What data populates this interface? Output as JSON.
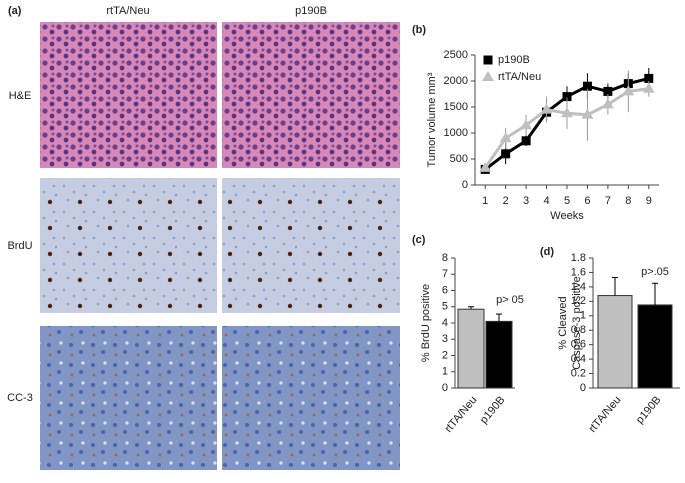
{
  "panels": {
    "a": {
      "label": "(a)",
      "columns": [
        "rtTA/Neu",
        "p190B"
      ],
      "rows": [
        "H&E",
        "BrdU",
        "CC-3"
      ]
    }
  },
  "chart_data": [
    {
      "type": "line",
      "label": "(b)",
      "ylabel": "Tumor volume mm³",
      "xlabel": "Weeks",
      "x": [
        1,
        2,
        3,
        4,
        5,
        6,
        7,
        8,
        9
      ],
      "xlim": [
        0.5,
        9.5
      ],
      "xticks": [
        1,
        2,
        3,
        4,
        5,
        6,
        7,
        8,
        9
      ],
      "ylim": [
        0,
        2500
      ],
      "yticks": [
        0,
        500,
        1000,
        1500,
        2000,
        2500
      ],
      "legend": "top-left",
      "series": [
        {
          "name": "p190B",
          "color": "#000000",
          "marker": "square",
          "values": [
            300,
            600,
            850,
            1400,
            1700,
            1900,
            1800,
            1950,
            2050
          ],
          "errors": [
            50,
            200,
            100,
            150,
            200,
            250,
            150,
            200,
            200
          ]
        },
        {
          "name": "rtTA/Neu",
          "color": "#bfbfbf",
          "marker": "triangle",
          "values": [
            330,
            900,
            1150,
            1450,
            1380,
            1350,
            1550,
            1800,
            1850
          ],
          "errors": [
            50,
            200,
            200,
            250,
            300,
            500,
            200,
            400,
            150
          ]
        }
      ]
    },
    {
      "type": "bar",
      "label": "(c)",
      "ylabel": "% BrdU positive",
      "categories": [
        "rtTA/Neu",
        "p190B"
      ],
      "values": [
        4.85,
        4.1
      ],
      "errors": [
        0.15,
        0.45
      ],
      "colors": [
        "#bfbfbf",
        "#000000"
      ],
      "ylim": [
        0,
        8
      ],
      "yticks": [
        0,
        1,
        2,
        3,
        4,
        5,
        6,
        7,
        8
      ],
      "annotation": "p> 05"
    },
    {
      "type": "bar",
      "label": "(d)",
      "ylabel": [
        "% Cleaved",
        "Caspase-3 positive"
      ],
      "categories": [
        "rtTA/Neu",
        "p190B"
      ],
      "values": [
        1.28,
        1.15
      ],
      "errors": [
        0.25,
        0.3
      ],
      "colors": [
        "#bfbfbf",
        "#000000"
      ],
      "ylim": [
        0,
        1.8
      ],
      "yticks": [
        0,
        0.2,
        0.4,
        0.6,
        0.8,
        1,
        1.2,
        1.4,
        1.6,
        1.8
      ],
      "annotation": "p>.05"
    }
  ]
}
